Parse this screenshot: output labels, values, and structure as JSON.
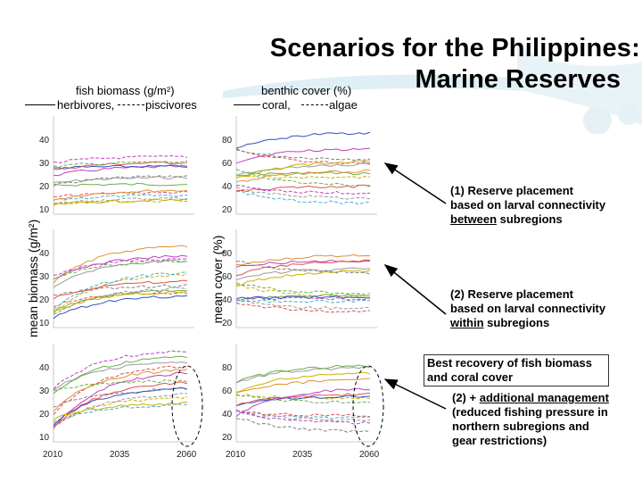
{
  "title_line1": "Scenarios for the Philippines:",
  "title_line2": "Marine Reserves",
  "fish_legend": {
    "header": "fish biomass (g/m²)",
    "solid": "herbivores,",
    "dashed": "piscivores"
  },
  "benthic_legend": {
    "header": "benthic cover (%)",
    "solid": "coral,",
    "dashed": "algae"
  },
  "fish_ylabel": "mean biomass (g/m²)",
  "benthic_ylabel": "mean cover (%)",
  "fish_ticks": [
    "40",
    "30",
    "20",
    "10"
  ],
  "benthic_ticks": [
    "80",
    "60",
    "40",
    "20"
  ],
  "x_ticks": [
    "2010",
    "2035",
    "2060"
  ],
  "notes": {
    "note1_a": "(1) Reserve placement",
    "note1_b": "based on larval connectivity",
    "note1_c_u": "between",
    "note1_c_rest": " subregions",
    "note2_a": "(2) Reserve placement",
    "note2_b": "based on larval connectivity",
    "note2_c_u": "within",
    "note2_c_rest": " subregions",
    "best_a": "Best recovery of fish biomass",
    "best_b": "and coral cover",
    "note3_prefix": "(2) + ",
    "note3_u": "additional management",
    "note3_b": "(reduced fishing pressure in",
    "note3_c": "northern subregions and",
    "note3_d": "gear restrictions)"
  },
  "colors": {
    "c1": "#9a9a9a",
    "c2": "#e05050",
    "c3": "#6ab04c",
    "c4": "#c9b000",
    "c5": "#c040c0",
    "c6": "#40b0d0",
    "c7": "#e09030",
    "c8": "#808080",
    "c9": "#3050c0"
  }
}
